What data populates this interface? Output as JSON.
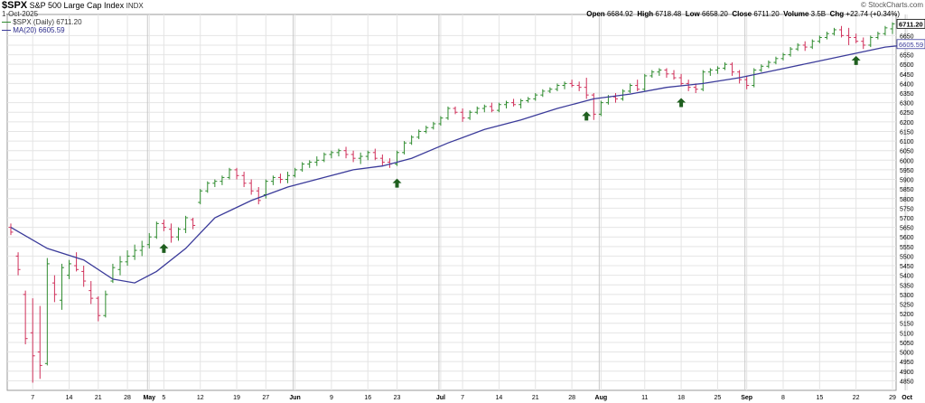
{
  "header": {
    "symbol": "$SPX",
    "name": "S&P 500 Large Cap Index",
    "exchange": "INDX",
    "date": "1-Oct-2025",
    "watermark": "© StockCharts.com",
    "legend_price": "$SPX (Daily) 6711.20",
    "legend_ma": "MA(20) 6605.59",
    "quote": {
      "open_label": "Open",
      "open": "6684.92",
      "high_label": "High",
      "high": "6718.48",
      "low_label": "Low",
      "low": "6658.20",
      "close_label": "Close",
      "close": "6711.20",
      "volume_label": "Volume",
      "volume": "3.5B",
      "chg_label": "Chg",
      "chg": "+22.74 (+0.34%)"
    }
  },
  "colors": {
    "up": "#2e8b2e",
    "down": "#d0305a",
    "ma": "#3b3b9a",
    "arrow": "#1f5f1f",
    "grid": "#e4e4e4"
  },
  "chart_data": {
    "type": "ohlc",
    "ylim": [
      4800,
      6760
    ],
    "y_ticks": [
      4850,
      4900,
      4950,
      5000,
      5050,
      5100,
      5150,
      5200,
      5250,
      5300,
      5350,
      5400,
      5450,
      5500,
      5550,
      5600,
      5650,
      5700,
      5750,
      5800,
      5850,
      5900,
      5950,
      6000,
      6050,
      6100,
      6150,
      6200,
      6250,
      6300,
      6350,
      6400,
      6450,
      6500,
      6550,
      6600,
      6650
    ],
    "x_labels": [
      {
        "i": 3,
        "label": "7",
        "bold": false
      },
      {
        "i": 8,
        "label": "14",
        "bold": false
      },
      {
        "i": 12,
        "label": "21",
        "bold": false
      },
      {
        "i": 16,
        "label": "28",
        "bold": false
      },
      {
        "i": 19,
        "label": "May",
        "bold": true
      },
      {
        "i": 21,
        "label": "5",
        "bold": false
      },
      {
        "i": 26,
        "label": "12",
        "bold": false
      },
      {
        "i": 31,
        "label": "19",
        "bold": false
      },
      {
        "i": 35,
        "label": "27",
        "bold": false
      },
      {
        "i": 39,
        "label": "Jun",
        "bold": true
      },
      {
        "i": 44,
        "label": "9",
        "bold": false
      },
      {
        "i": 49,
        "label": "16",
        "bold": false
      },
      {
        "i": 53,
        "label": "23",
        "bold": false
      },
      {
        "i": 59,
        "label": "Jul",
        "bold": true
      },
      {
        "i": 62,
        "label": "7",
        "bold": false
      },
      {
        "i": 67,
        "label": "14",
        "bold": false
      },
      {
        "i": 72,
        "label": "21",
        "bold": false
      },
      {
        "i": 77,
        "label": "28",
        "bold": false
      },
      {
        "i": 81,
        "label": "Aug",
        "bold": true
      },
      {
        "i": 87,
        "label": "11",
        "bold": false
      },
      {
        "i": 92,
        "label": "18",
        "bold": false
      },
      {
        "i": 97,
        "label": "25",
        "bold": false
      },
      {
        "i": 101,
        "label": "Sep",
        "bold": true
      },
      {
        "i": 106,
        "label": "8",
        "bold": false
      },
      {
        "i": 111,
        "label": "15",
        "bold": false
      },
      {
        "i": 116,
        "label": "22",
        "bold": false
      },
      {
        "i": 121,
        "label": "29",
        "bold": false
      },
      {
        "i": 123,
        "label": "Oct",
        "bold": true
      }
    ],
    "month_separators": [
      19,
      39,
      59,
      81,
      101,
      123
    ],
    "bars": [
      [
        5650,
        5670,
        5610,
        5625
      ],
      [
        5500,
        5520,
        5400,
        5430
      ],
      [
        5300,
        5320,
        5040,
        5070
      ],
      [
        5100,
        5280,
        4840,
        4980
      ],
      [
        5000,
        5240,
        4860,
        4930
      ],
      [
        4940,
        5490,
        4930,
        5460
      ],
      [
        5360,
        5400,
        5260,
        5300
      ],
      [
        5270,
        5460,
        5220,
        5440
      ],
      [
        5400,
        5480,
        5380,
        5460
      ],
      [
        5450,
        5520,
        5420,
        5430
      ],
      [
        5420,
        5450,
        5340,
        5370
      ],
      [
        5320,
        5370,
        5250,
        5280
      ],
      [
        5280,
        5290,
        5160,
        5190
      ],
      [
        5190,
        5320,
        5180,
        5300
      ],
      [
        5370,
        5460,
        5360,
        5440
      ],
      [
        5430,
        5500,
        5400,
        5470
      ],
      [
        5470,
        5530,
        5450,
        5500
      ],
      [
        5500,
        5560,
        5480,
        5530
      ],
      [
        5530,
        5580,
        5500,
        5550
      ],
      [
        5560,
        5620,
        5540,
        5600
      ],
      [
        5600,
        5680,
        5590,
        5670
      ],
      [
        5670,
        5690,
        5630,
        5650
      ],
      [
        5640,
        5670,
        5570,
        5600
      ],
      [
        5600,
        5650,
        5580,
        5640
      ],
      [
        5640,
        5710,
        5620,
        5700
      ],
      [
        5690,
        5700,
        5640,
        5660
      ],
      [
        5780,
        5850,
        5770,
        5840
      ],
      [
        5840,
        5890,
        5830,
        5880
      ],
      [
        5880,
        5900,
        5860,
        5890
      ],
      [
        5890,
        5920,
        5870,
        5910
      ],
      [
        5910,
        5960,
        5900,
        5950
      ],
      [
        5950,
        5960,
        5900,
        5920
      ],
      [
        5920,
        5940,
        5860,
        5880
      ],
      [
        5880,
        5900,
        5820,
        5840
      ],
      [
        5840,
        5860,
        5770,
        5790
      ],
      [
        5820,
        5900,
        5800,
        5890
      ],
      [
        5890,
        5920,
        5870,
        5910
      ],
      [
        5910,
        5930,
        5880,
        5900
      ],
      [
        5900,
        5940,
        5880,
        5920
      ],
      [
        5920,
        5960,
        5910,
        5950
      ],
      [
        5950,
        5990,
        5940,
        5980
      ],
      [
        5980,
        6000,
        5960,
        5990
      ],
      [
        5990,
        6020,
        5970,
        6000
      ],
      [
        6000,
        6040,
        5990,
        6030
      ],
      [
        6030,
        6050,
        6010,
        6040
      ],
      [
        6040,
        6060,
        6020,
        6050
      ],
      [
        6050,
        6070,
        6010,
        6030
      ],
      [
        6030,
        6050,
        5990,
        6010
      ],
      [
        6010,
        6040,
        5980,
        6020
      ],
      [
        6020,
        6050,
        6000,
        6040
      ],
      [
        6040,
        6060,
        6000,
        6010
      ],
      [
        6010,
        6030,
        5970,
        5990
      ],
      [
        5990,
        6010,
        5960,
        5980
      ],
      [
        5980,
        6050,
        5970,
        6040
      ],
      [
        6040,
        6100,
        6030,
        6090
      ],
      [
        6090,
        6130,
        6080,
        6120
      ],
      [
        6120,
        6160,
        6110,
        6150
      ],
      [
        6150,
        6180,
        6140,
        6170
      ],
      [
        6170,
        6200,
        6160,
        6190
      ],
      [
        6190,
        6230,
        6180,
        6220
      ],
      [
        6220,
        6280,
        6210,
        6270
      ],
      [
        6270,
        6280,
        6240,
        6250
      ],
      [
        6250,
        6270,
        6200,
        6220
      ],
      [
        6220,
        6260,
        6210,
        6250
      ],
      [
        6250,
        6280,
        6240,
        6270
      ],
      [
        6270,
        6290,
        6250,
        6280
      ],
      [
        6280,
        6300,
        6250,
        6260
      ],
      [
        6260,
        6300,
        6250,
        6290
      ],
      [
        6290,
        6310,
        6270,
        6300
      ],
      [
        6300,
        6320,
        6280,
        6290
      ],
      [
        6290,
        6320,
        6270,
        6310
      ],
      [
        6310,
        6330,
        6300,
        6320
      ],
      [
        6320,
        6350,
        6310,
        6340
      ],
      [
        6340,
        6370,
        6330,
        6360
      ],
      [
        6360,
        6380,
        6350,
        6370
      ],
      [
        6370,
        6400,
        6360,
        6390
      ],
      [
        6390,
        6410,
        6370,
        6400
      ],
      [
        6400,
        6420,
        6380,
        6390
      ],
      [
        6390,
        6410,
        6360,
        6380
      ],
      [
        6380,
        6430,
        6320,
        6340
      ],
      [
        6340,
        6350,
        6210,
        6240
      ],
      [
        6240,
        6310,
        6230,
        6300
      ],
      [
        6300,
        6340,
        6290,
        6330
      ],
      [
        6330,
        6350,
        6300,
        6320
      ],
      [
        6320,
        6370,
        6310,
        6360
      ],
      [
        6360,
        6400,
        6350,
        6390
      ],
      [
        6390,
        6420,
        6360,
        6370
      ],
      [
        6370,
        6450,
        6360,
        6440
      ],
      [
        6440,
        6470,
        6430,
        6460
      ],
      [
        6460,
        6480,
        6440,
        6470
      ],
      [
        6470,
        6480,
        6430,
        6450
      ],
      [
        6450,
        6470,
        6420,
        6430
      ],
      [
        6430,
        6450,
        6390,
        6400
      ],
      [
        6400,
        6420,
        6360,
        6380
      ],
      [
        6380,
        6400,
        6350,
        6370
      ],
      [
        6370,
        6470,
        6360,
        6460
      ],
      [
        6460,
        6480,
        6440,
        6470
      ],
      [
        6470,
        6490,
        6450,
        6480
      ],
      [
        6480,
        6510,
        6470,
        6500
      ],
      [
        6500,
        6510,
        6440,
        6460
      ],
      [
        6460,
        6470,
        6400,
        6420
      ],
      [
        6420,
        6440,
        6370,
        6390
      ],
      [
        6390,
        6480,
        6380,
        6470
      ],
      [
        6470,
        6500,
        6460,
        6490
      ],
      [
        6490,
        6520,
        6480,
        6510
      ],
      [
        6510,
        6540,
        6500,
        6530
      ],
      [
        6530,
        6560,
        6520,
        6550
      ],
      [
        6550,
        6590,
        6540,
        6580
      ],
      [
        6580,
        6610,
        6570,
        6600
      ],
      [
        6600,
        6620,
        6570,
        6590
      ],
      [
        6590,
        6630,
        6580,
        6620
      ],
      [
        6620,
        6650,
        6610,
        6640
      ],
      [
        6640,
        6670,
        6630,
        6660
      ],
      [
        6660,
        6690,
        6650,
        6680
      ],
      [
        6680,
        6700,
        6640,
        6650
      ],
      [
        6650,
        6690,
        6600,
        6640
      ],
      [
        6640,
        6660,
        6610,
        6620
      ],
      [
        6620,
        6640,
        6580,
        6600
      ],
      [
        6600,
        6650,
        6590,
        6640
      ],
      [
        6640,
        6670,
        6630,
        6660
      ],
      [
        6660,
        6700,
        6650,
        6690
      ],
      [
        6684.92,
        6718.48,
        6658.2,
        6711.2
      ]
    ],
    "ma20": [
      [
        0,
        5650
      ],
      [
        5,
        5540
      ],
      [
        10,
        5480
      ],
      [
        14,
        5380
      ],
      [
        17,
        5360
      ],
      [
        20,
        5420
      ],
      [
        24,
        5540
      ],
      [
        28,
        5700
      ],
      [
        33,
        5790
      ],
      [
        38,
        5860
      ],
      [
        43,
        5910
      ],
      [
        47,
        5950
      ],
      [
        51,
        5970
      ],
      [
        55,
        6010
      ],
      [
        60,
        6090
      ],
      [
        65,
        6160
      ],
      [
        70,
        6210
      ],
      [
        75,
        6270
      ],
      [
        80,
        6320
      ],
      [
        85,
        6345
      ],
      [
        90,
        6380
      ],
      [
        95,
        6400
      ],
      [
        100,
        6430
      ],
      [
        105,
        6470
      ],
      [
        110,
        6510
      ],
      [
        115,
        6550
      ],
      [
        120,
        6590
      ],
      [
        124,
        6605.59
      ]
    ],
    "arrows": [
      21,
      53,
      79,
      92,
      116
    ],
    "price_label": "6711.20",
    "ma_label": "6605.59"
  }
}
